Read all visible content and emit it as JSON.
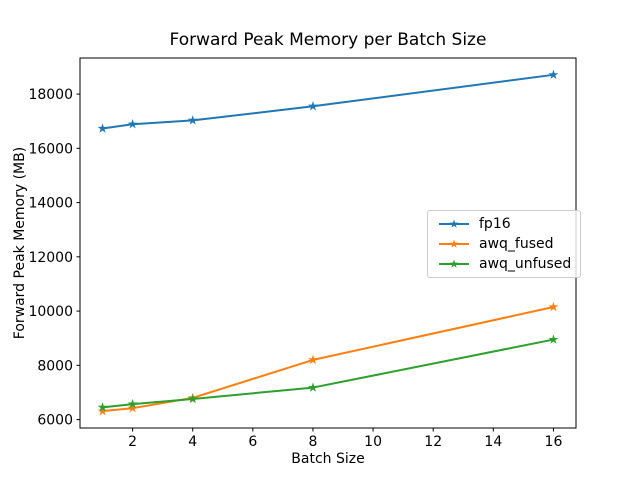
{
  "figure": {
    "background": "#ffffff"
  },
  "chart_data": {
    "type": "line",
    "title": "Forward Peak Memory per Batch Size",
    "xlabel": "Batch Size",
    "ylabel": "Forward Peak Memory (MB)",
    "x": [
      1,
      2,
      4,
      8,
      16
    ],
    "series": [
      {
        "name": "fp16",
        "color": "#1f77b4",
        "marker": "star",
        "values": [
          16730,
          16890,
          17030,
          17550,
          18710
        ]
      },
      {
        "name": "awq_fused",
        "color": "#ff7f0e",
        "marker": "star",
        "values": [
          6310,
          6420,
          6800,
          8200,
          10150
        ]
      },
      {
        "name": "awq_unfused",
        "color": "#2ca02c",
        "marker": "star",
        "values": [
          6450,
          6570,
          6760,
          7180,
          8950
        ]
      }
    ],
    "xticks": [
      2,
      4,
      6,
      8,
      10,
      12,
      14,
      16
    ],
    "yticks": [
      6000,
      8000,
      10000,
      12000,
      14000,
      16000,
      18000
    ],
    "xlim": [
      0.25,
      16.75
    ],
    "ylim": [
      5690,
      19330
    ],
    "grid": false,
    "legend_position": "center-right",
    "axis_color": "#000000",
    "text_color": "#000000"
  }
}
